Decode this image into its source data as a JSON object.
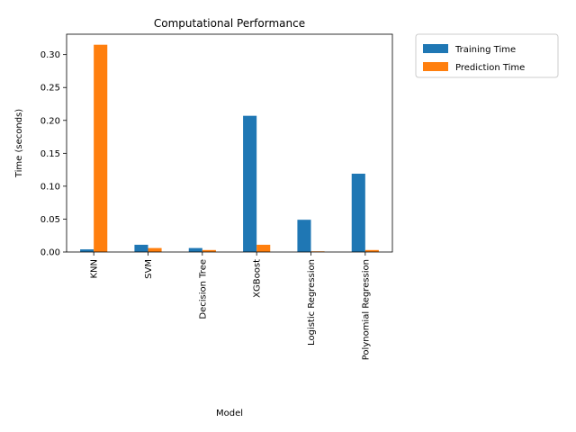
{
  "chart_data": {
    "type": "bar",
    "title": "Computational Performance",
    "xlabel": "Model",
    "ylabel": "Time (seconds)",
    "categories": [
      "KNN",
      "SVM",
      "Decision Tree",
      "XGBoost",
      "Logistic Regression",
      "Polynomial Regression"
    ],
    "series": [
      {
        "name": "Training Time",
        "color": "#1f77b4",
        "values": [
          0.004,
          0.011,
          0.006,
          0.207,
          0.049,
          0.119
        ]
      },
      {
        "name": "Prediction Time",
        "color": "#ff7f0e",
        "values": [
          0.315,
          0.006,
          0.003,
          0.011,
          0.001,
          0.003
        ]
      }
    ],
    "ylim": [
      0,
      0.331
    ],
    "yticks": [
      0.0,
      0.05,
      0.1,
      0.15,
      0.2,
      0.25,
      0.3
    ],
    "ytick_labels": [
      "0.00",
      "0.05",
      "0.10",
      "0.15",
      "0.20",
      "0.25",
      "0.30"
    ],
    "grid": false,
    "legend_position": "outside-top-right"
  }
}
